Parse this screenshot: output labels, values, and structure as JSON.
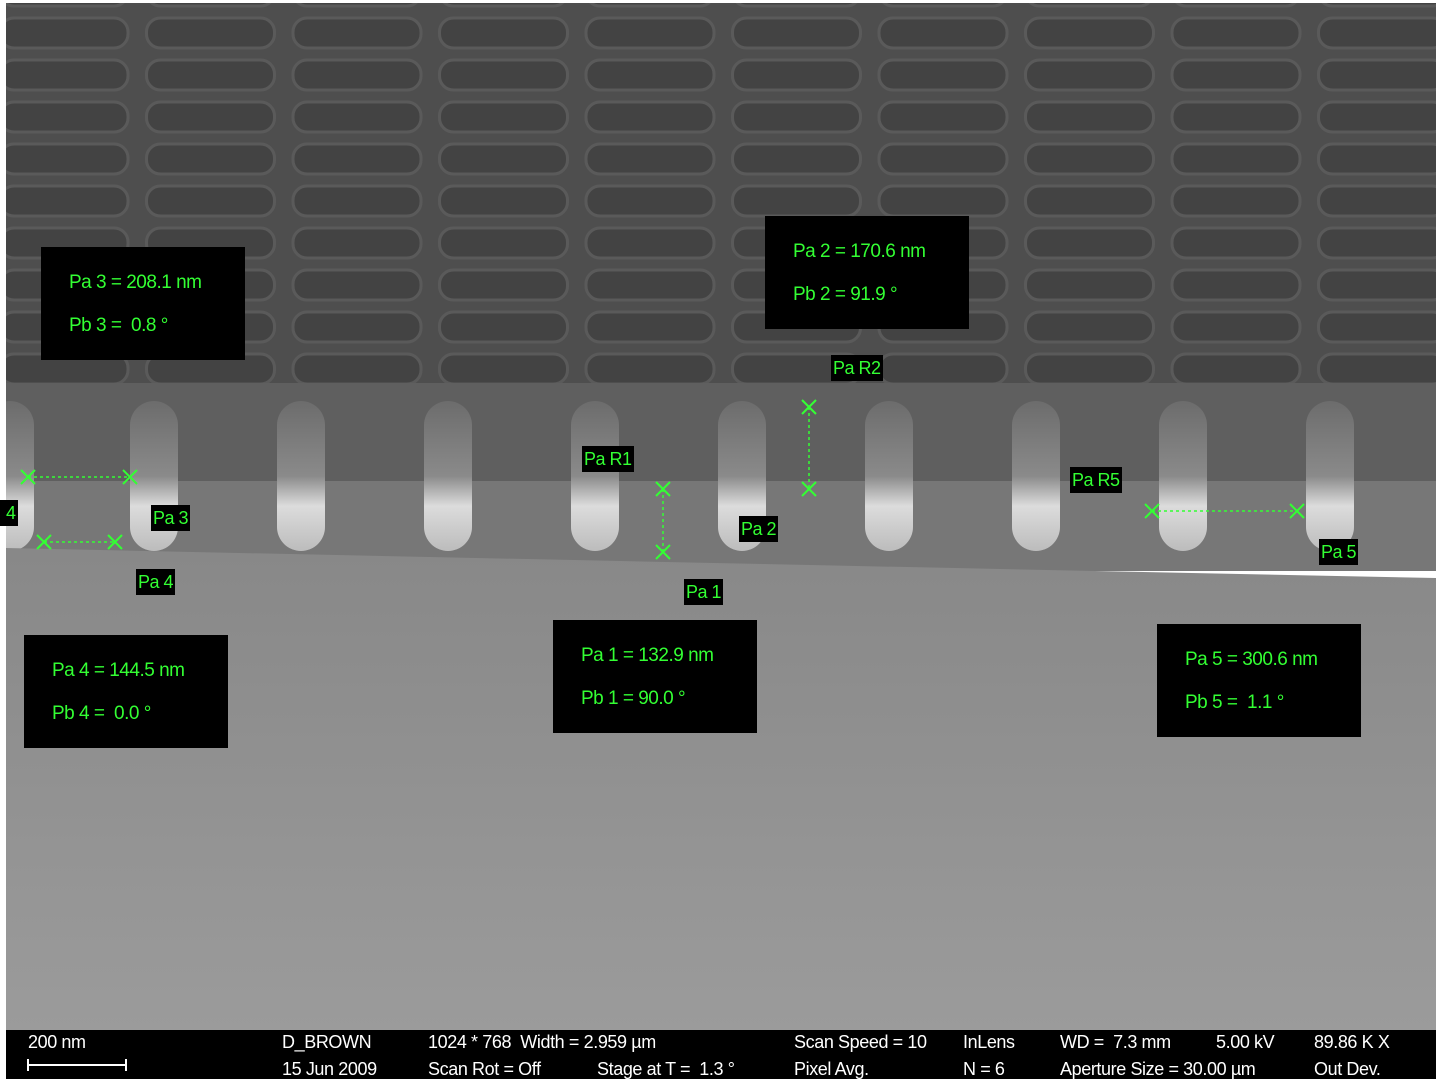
{
  "measurements": [
    {
      "length": "Pa 3 = 208.1 nm",
      "angle": "Pb 3 =  0.8 °"
    },
    {
      "length": "Pa 2 = 170.6 nm",
      "angle": "Pb 2 = 91.9 °"
    },
    {
      "length": "Pa 4 = 144.5 nm",
      "angle": "Pb 4 =  0.0 °"
    },
    {
      "length": "Pa 1 = 132.9 nm",
      "angle": "Pb 1 = 90.0 °"
    },
    {
      "length": "Pa 5 = 300.6 nm",
      "angle": "Pb 5 =  1.1 °"
    }
  ],
  "markers": [
    "Pa R2",
    "Pa R1",
    "Pa 3",
    "Pa 4",
    "Pa 2",
    "Pa 1",
    "Pa R5",
    "Pa 5",
    "4"
  ],
  "info_bar": {
    "scale": "200 nm",
    "user": "D_BROWN",
    "date": "15 Jun 2009",
    "resolution": "1024 * 768  Width = 2.959 µm",
    "scan_rot": "Scan Rot = Off",
    "stage": "Stage at T =  1.3 °",
    "scan_speed": "Scan Speed = 10",
    "pixel_avg": "Pixel Avg.",
    "detector": "InLens",
    "n": "N = 6",
    "wd": "WD =  7.3 mm",
    "voltage": "5.00 kV",
    "aperture": "Aperture Size = 30.00 µm",
    "magnification": "89.86 K X",
    "output": "Out Dev."
  }
}
